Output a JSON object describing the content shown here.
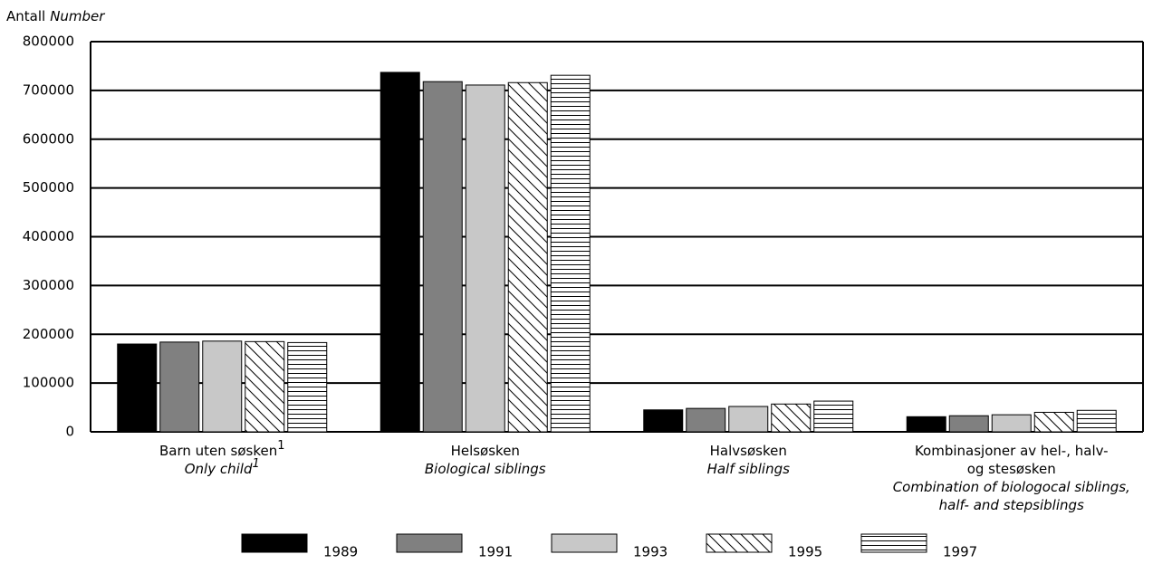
{
  "chart_data": {
    "type": "bar",
    "y_label": "Antall",
    "y_label_en": "Number",
    "categories": [
      {
        "lines": [
          "Barn uten søsken"
        ],
        "lines_en": [
          "Only child"
        ],
        "footnote": "1"
      },
      {
        "lines": [
          "Helsøsken"
        ],
        "lines_en": [
          "Biological siblings"
        ]
      },
      {
        "lines": [
          "Halvsøsken"
        ],
        "lines_en": [
          "Half siblings"
        ]
      },
      {
        "lines": [
          "Kombinasjoner av hel-, halv-",
          "og stesøsken"
        ],
        "lines_en": [
          "Combination of biologocal siblings,",
          "half- and stepsiblings"
        ]
      }
    ],
    "series": [
      {
        "name": "1989",
        "color": "#000000",
        "values": [
          180000,
          737000,
          45000,
          31000
        ]
      },
      {
        "name": "1991",
        "color": "#808080",
        "values": [
          184000,
          718000,
          48000,
          33000
        ]
      },
      {
        "name": "1993",
        "color": "#c8c8c8",
        "values": [
          186000,
          711000,
          52000,
          35000
        ]
      },
      {
        "name": "1995",
        "color": "#ffffff",
        "pattern": "diagonal",
        "values": [
          185000,
          716000,
          57000,
          40000
        ]
      },
      {
        "name": "1997",
        "color": "#ffffff",
        "pattern": "horizontal",
        "values": [
          183000,
          731000,
          63000,
          44000
        ]
      }
    ],
    "ylim": [
      0,
      800000
    ],
    "yticks": [
      0,
      100000,
      200000,
      300000,
      400000,
      500000,
      600000,
      700000,
      800000
    ],
    "grid": true,
    "legend": "bottom"
  }
}
